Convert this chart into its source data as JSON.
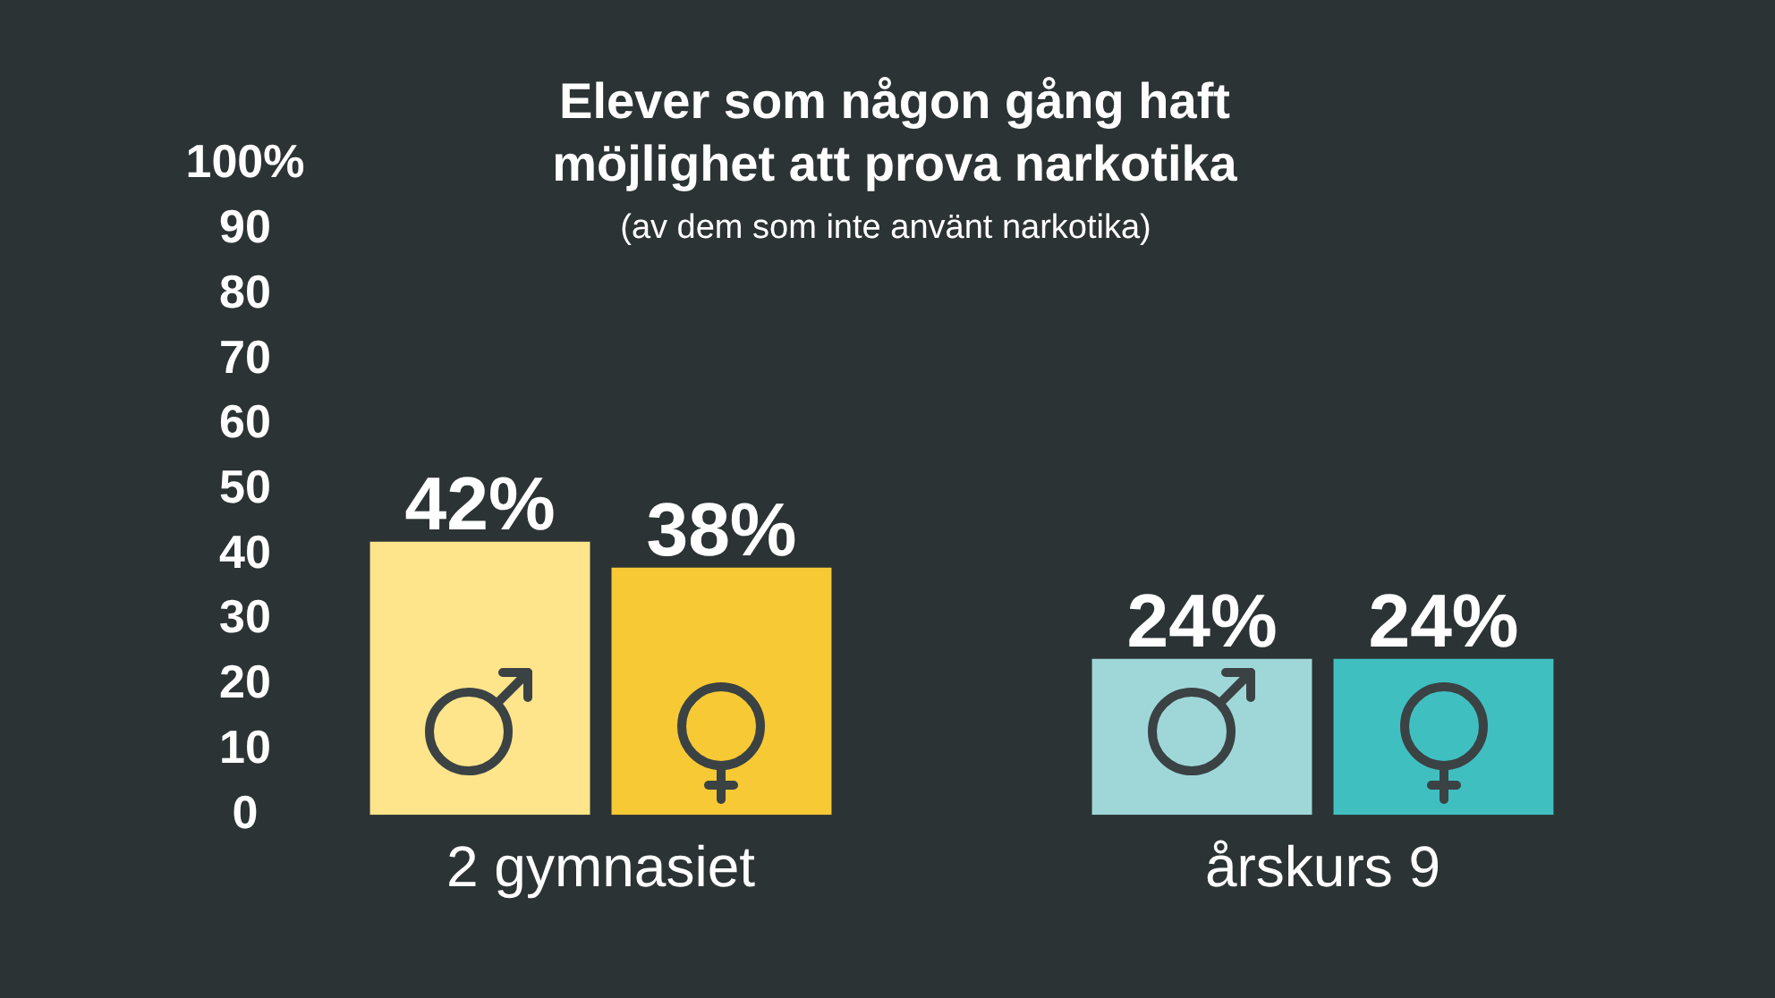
{
  "chart_data": {
    "type": "bar",
    "title": "Elever som någon gång haft möjlighet att prova narkotika",
    "subtitle": "(av dem som inte använt narkotika)",
    "categories": [
      "2 gymnasiet",
      "årskurs 9"
    ],
    "series": [
      {
        "colors": [
          "#fee48b",
          "#9fd7d9"
        ],
        "values": [
          42,
          24
        ],
        "value_labels": [
          "42%",
          "24%"
        ]
      },
      {
        "colors": [
          "#f7c935",
          "#40bfc1"
        ],
        "values": [
          38,
          24
        ],
        "value_labels": [
          "38%",
          "24%"
        ]
      }
    ],
    "ylim": [
      0,
      100
    ],
    "yticks": [
      0,
      10,
      20,
      30,
      40,
      50,
      60,
      70,
      80,
      90,
      {
        "value": 100,
        "label": "100%"
      }
    ]
  }
}
